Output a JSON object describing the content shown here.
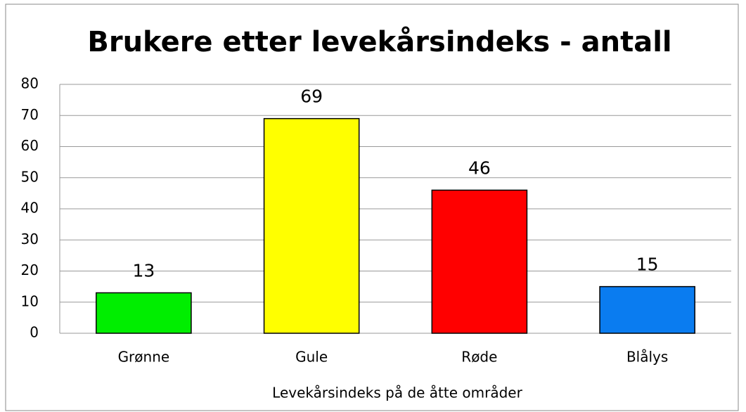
{
  "chart_data": {
    "type": "bar",
    "title": "Brukere etter levekårsindeks - antall",
    "x_label": "Levekårsindeks på de åtte områder",
    "categories": [
      "Grønne",
      "Gule",
      "Røde",
      "Blålys"
    ],
    "values": [
      13,
      69,
      46,
      15
    ],
    "colors": [
      "#00ee00",
      "#ffff00",
      "#ff0000",
      "#0a7cf0"
    ],
    "ylim": [
      0,
      80
    ],
    "yticks": [
      0,
      10,
      20,
      30,
      40,
      50,
      60,
      70,
      80
    ],
    "grid": true
  }
}
